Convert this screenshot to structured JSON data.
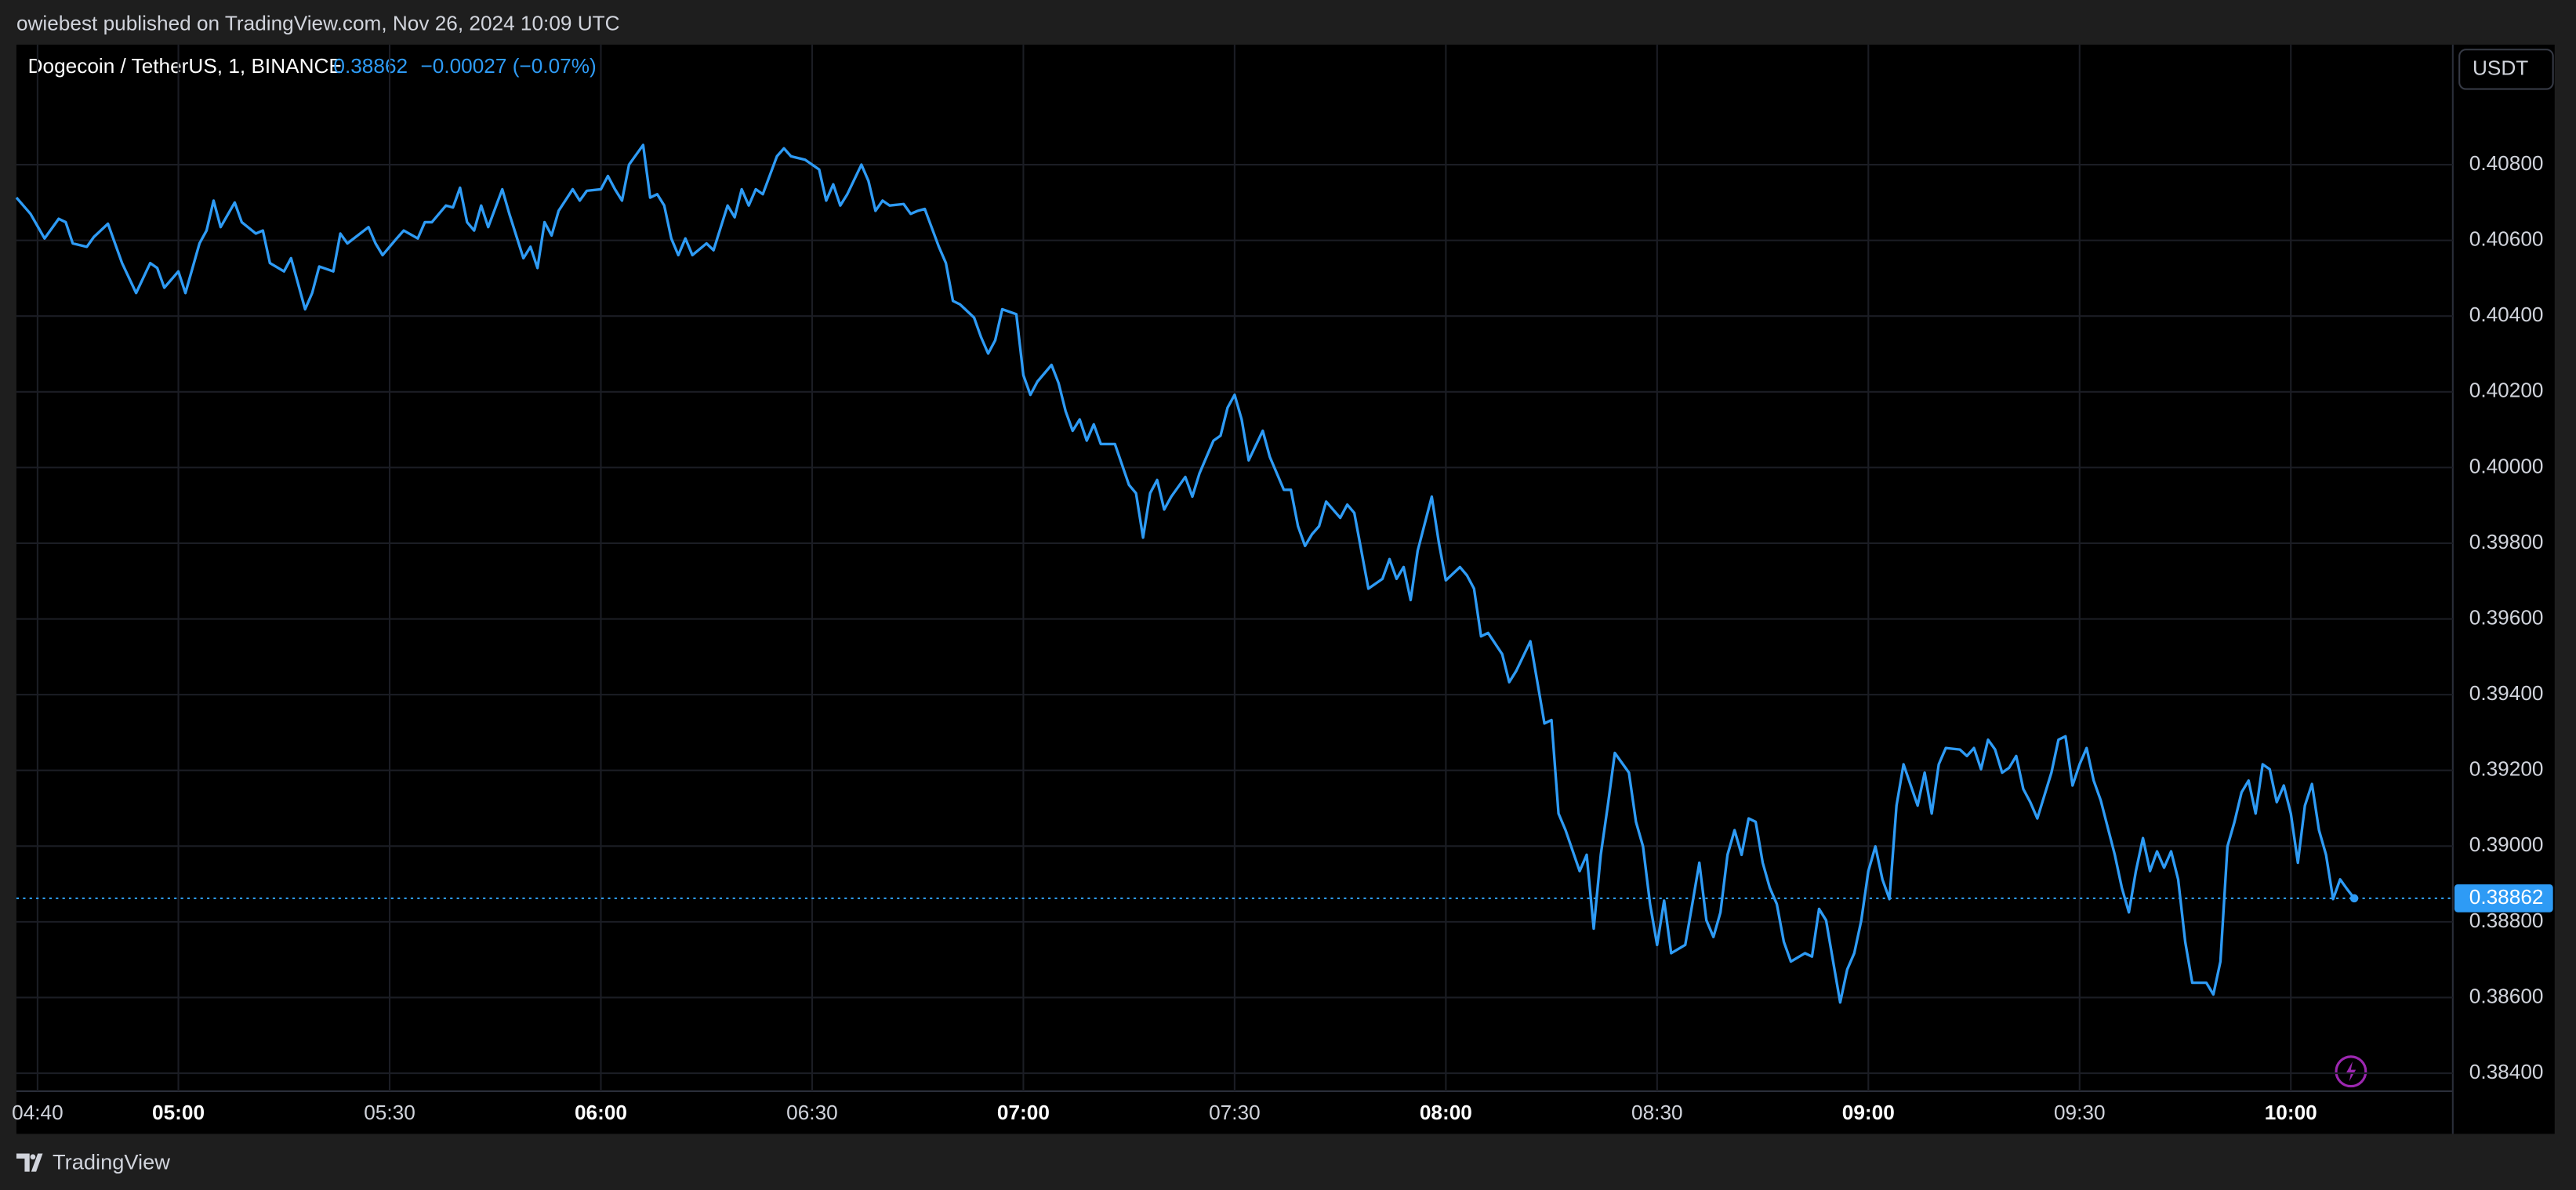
{
  "chart_data": {
    "type": "line",
    "publisher_line": "owiebest published on TradingView.com, Nov 26, 2024 10:09 UTC",
    "symbol": "Dogecoin / TetherUS, 1, BINANCE",
    "last_price": 0.38862,
    "change_label": "−0.00027 (−0.07%)",
    "currency": "USDT",
    "brand": "TradingView",
    "color": "#2e9bf5",
    "grid": true,
    "xlim": [
      "04:37",
      "10:23"
    ],
    "xticks": [
      "04:40",
      "05:00",
      "05:30",
      "06:00",
      "06:30",
      "07:00",
      "07:30",
      "08:00",
      "08:30",
      "09:00",
      "09:30",
      "10:00"
    ],
    "ylim": [
      0.38357,
      0.41117
    ],
    "yticks": [
      {
        "value": 0.384,
        "label": "0.38400"
      },
      {
        "value": 0.386,
        "label": "0.38600"
      },
      {
        "value": 0.388,
        "label": "0.38800"
      },
      {
        "value": 0.39,
        "label": "0.39000"
      },
      {
        "value": 0.392,
        "label": "0.39200"
      },
      {
        "value": 0.394,
        "label": "0.39400"
      },
      {
        "value": 0.396,
        "label": "0.39600"
      },
      {
        "value": 0.398,
        "label": "0.39800"
      },
      {
        "value": 0.4,
        "label": "0.40000"
      },
      {
        "value": 0.402,
        "label": "0.40200"
      },
      {
        "value": 0.404,
        "label": "0.40400"
      },
      {
        "value": 0.406,
        "label": "0.40600"
      },
      {
        "value": 0.408,
        "label": "0.40800"
      }
    ],
    "x": [
      "04:37",
      "04:39",
      "04:41",
      "04:43",
      "04:44",
      "04:45",
      "04:47",
      "04:48",
      "04:50",
      "04:52",
      "04:54",
      "04:56",
      "04:57",
      "04:58",
      "05:00",
      "05:01",
      "05:03",
      "05:04",
      "05:05",
      "05:06",
      "05:08",
      "05:09",
      "05:11",
      "05:12",
      "05:13",
      "05:15",
      "05:16",
      "05:18",
      "05:19",
      "05:20",
      "05:22",
      "05:23",
      "05:24",
      "05:27",
      "05:28",
      "05:29",
      "05:31",
      "05:32",
      "05:34",
      "05:35",
      "05:36",
      "05:38",
      "05:39",
      "05:40",
      "05:41",
      "05:42",
      "05:43",
      "05:44",
      "05:46",
      "05:47",
      "05:49",
      "05:50",
      "05:51",
      "05:52",
      "05:53",
      "05:54",
      "05:56",
      "05:57",
      "05:58",
      "06:00",
      "06:01",
      "06:02",
      "06:03",
      "06:04",
      "06:06",
      "06:07",
      "06:08",
      "06:09",
      "06:10",
      "06:11",
      "06:12",
      "06:13",
      "06:15",
      "06:16",
      "06:18",
      "06:19",
      "06:20",
      "06:21",
      "06:22",
      "06:23",
      "06:25",
      "06:26",
      "06:27",
      "06:29",
      "06:31",
      "06:32",
      "06:33",
      "06:34",
      "06:35",
      "06:37",
      "06:38",
      "06:39",
      "06:40",
      "06:41",
      "06:43",
      "06:44",
      "06:45",
      "06:46",
      "06:48",
      "06:49",
      "06:50",
      "06:51",
      "06:53",
      "06:54",
      "06:55",
      "06:56",
      "06:57",
      "06:59",
      "07:00",
      "07:01",
      "07:02",
      "07:04",
      "07:05",
      "07:06",
      "07:07",
      "07:08",
      "07:09",
      "07:10",
      "07:11",
      "07:13",
      "07:15",
      "07:16",
      "07:17",
      "07:18",
      "07:19",
      "07:20",
      "07:21",
      "07:23",
      "07:24",
      "07:25",
      "07:27",
      "07:28",
      "07:29",
      "07:30",
      "07:31",
      "07:32",
      "07:34",
      "07:35",
      "07:37",
      "07:38",
      "07:39",
      "07:40",
      "07:41",
      "07:42",
      "07:43",
      "07:45",
      "07:46",
      "07:47",
      "07:48",
      "07:49",
      "07:51",
      "07:52",
      "07:53",
      "07:54",
      "07:55",
      "07:56",
      "07:58",
      "07:59",
      "08:00",
      "08:02",
      "08:03",
      "08:04",
      "08:05",
      "08:06",
      "08:08",
      "08:09",
      "08:10",
      "08:12",
      "08:13",
      "08:14",
      "08:15",
      "08:16",
      "08:17",
      "08:19",
      "08:20",
      "08:21",
      "08:22",
      "08:23",
      "08:24",
      "08:26",
      "08:27",
      "08:28",
      "08:29",
      "08:30",
      "08:31",
      "08:32",
      "08:34",
      "08:35",
      "08:36",
      "08:37",
      "08:38",
      "08:39",
      "08:40",
      "08:41",
      "08:42",
      "08:43",
      "08:44",
      "08:45",
      "08:46",
      "08:47",
      "08:48",
      "08:49",
      "08:51",
      "08:52",
      "08:53",
      "08:54",
      "08:55",
      "08:56",
      "08:57",
      "08:58",
      "08:59",
      "09:00",
      "09:01",
      "09:02",
      "09:03",
      "09:04",
      "09:05",
      "09:07",
      "09:08",
      "09:09",
      "09:10",
      "09:11",
      "09:13",
      "09:14",
      "09:15",
      "09:16",
      "09:17",
      "09:18",
      "09:19",
      "09:20",
      "09:21",
      "09:22",
      "09:23",
      "09:24",
      "09:26",
      "09:27",
      "09:28",
      "09:29",
      "09:30",
      "09:31",
      "09:32",
      "09:33",
      "09:35",
      "09:36",
      "09:37",
      "09:38",
      "09:39",
      "09:40",
      "09:41",
      "09:42",
      "09:43",
      "09:44",
      "09:45",
      "09:46",
      "09:48",
      "09:49",
      "09:50",
      "09:51",
      "09:52",
      "09:53",
      "09:54",
      "09:55",
      "09:56",
      "09:57",
      "09:58",
      "09:59",
      "10:00",
      "10:01",
      "10:02",
      "10:03",
      "10:04",
      "10:05",
      "10:06",
      "10:07",
      "10:08",
      "10:09"
    ],
    "values": [
      0.40713,
      0.4067,
      0.40605,
      0.40657,
      0.40648,
      0.40592,
      0.40583,
      0.40609,
      0.40644,
      0.4054,
      0.40461,
      0.4054,
      0.40527,
      0.40475,
      0.40518,
      0.40461,
      0.40592,
      0.40626,
      0.40705,
      0.40635,
      0.407,
      0.40648,
      0.40618,
      0.40626,
      0.4054,
      0.40518,
      0.40553,
      0.40418,
      0.40461,
      0.40531,
      0.40518,
      0.40618,
      0.40592,
      0.40635,
      0.40592,
      0.40561,
      0.40605,
      0.40626,
      0.40605,
      0.40648,
      0.40648,
      0.40692,
      0.40687,
      0.40739,
      0.40648,
      0.40626,
      0.40692,
      0.40635,
      0.40735,
      0.4067,
      0.40553,
      0.40583,
      0.40527,
      0.40648,
      0.40613,
      0.40678,
      0.40735,
      0.40705,
      0.40731,
      0.40735,
      0.4077,
      0.40735,
      0.40705,
      0.408,
      0.40852,
      0.40713,
      0.40722,
      0.40692,
      0.40605,
      0.40561,
      0.40605,
      0.40561,
      0.40592,
      0.40574,
      0.40692,
      0.40661,
      0.40735,
      0.40692,
      0.40735,
      0.40722,
      0.40822,
      0.40843,
      0.40822,
      0.40813,
      0.40787,
      0.40705,
      0.40748,
      0.40692,
      0.40722,
      0.408,
      0.40757,
      0.40678,
      0.40705,
      0.40692,
      0.40696,
      0.4067,
      0.40678,
      0.40683,
      0.40583,
      0.4054,
      0.4044,
      0.40431,
      0.40396,
      0.40344,
      0.40301,
      0.40336,
      0.40418,
      0.40405,
      0.40244,
      0.40192,
      0.40227,
      0.40271,
      0.40223,
      0.40149,
      0.40097,
      0.40127,
      0.40071,
      0.40114,
      0.40062,
      0.40062,
      0.39954,
      0.39932,
      0.39815,
      0.39932,
      0.39967,
      0.39889,
      0.39923,
      0.39975,
      0.39923,
      0.39984,
      0.40071,
      0.40084,
      0.40158,
      0.40192,
      0.40127,
      0.40019,
      0.40097,
      0.40028,
      0.39941,
      0.39941,
      0.39845,
      0.39793,
      0.39824,
      0.39845,
      0.3991,
      0.39867,
      0.39902,
      0.3988,
      0.3978,
      0.3968,
      0.39706,
      0.39758,
      0.39706,
      0.39737,
      0.3965,
      0.3978,
      0.39923,
      0.39802,
      0.39702,
      0.39737,
      0.39715,
      0.3968,
      0.39554,
      0.39563,
      0.39507,
      0.39433,
      0.39463,
      0.39541,
      0.39433,
      0.39324,
      0.39333,
      0.39086,
      0.39042,
      0.38934,
      0.38977,
      0.38782,
      0.38977,
      0.39107,
      0.39246,
      0.39194,
      0.39064,
      0.38999,
      0.38847,
      0.38739,
      0.38856,
      0.38717,
      0.38739,
      0.38847,
      0.38956,
      0.38804,
      0.3876,
      0.38825,
      0.38977,
      0.39042,
      0.38977,
      0.39073,
      0.39064,
      0.38956,
      0.3889,
      0.38847,
      0.38747,
      0.38695,
      0.38717,
      0.38708,
      0.38834,
      0.38804,
      0.38695,
      0.38587,
      0.38674,
      0.38717,
      0.38804,
      0.38934,
      0.38999,
      0.38912,
      0.3886,
      0.39107,
      0.39216,
      0.39107,
      0.39194,
      0.39086,
      0.39216,
      0.39259,
      0.39255,
      0.39238,
      0.39259,
      0.39203,
      0.39281,
      0.39255,
      0.39194,
      0.39207,
      0.39238,
      0.39151,
      0.39116,
      0.39073,
      0.39194,
      0.39281,
      0.3929,
      0.3916,
      0.39216,
      0.39259,
      0.39173,
      0.39121,
      0.38977,
      0.3889,
      0.38825,
      0.38934,
      0.39021,
      0.38934,
      0.38986,
      0.38943,
      0.38986,
      0.38912,
      0.38747,
      0.38639,
      0.38639,
      0.38608,
      0.38695,
      0.38999,
      0.39064,
      0.39142,
      0.39173,
      0.39086,
      0.39216,
      0.39203,
      0.39116,
      0.3916,
      0.39086,
      0.38956,
      0.39107,
      0.39164,
      0.39042,
      0.38977,
      0.3886,
      0.38912,
      0.38886,
      0.38862
    ]
  }
}
